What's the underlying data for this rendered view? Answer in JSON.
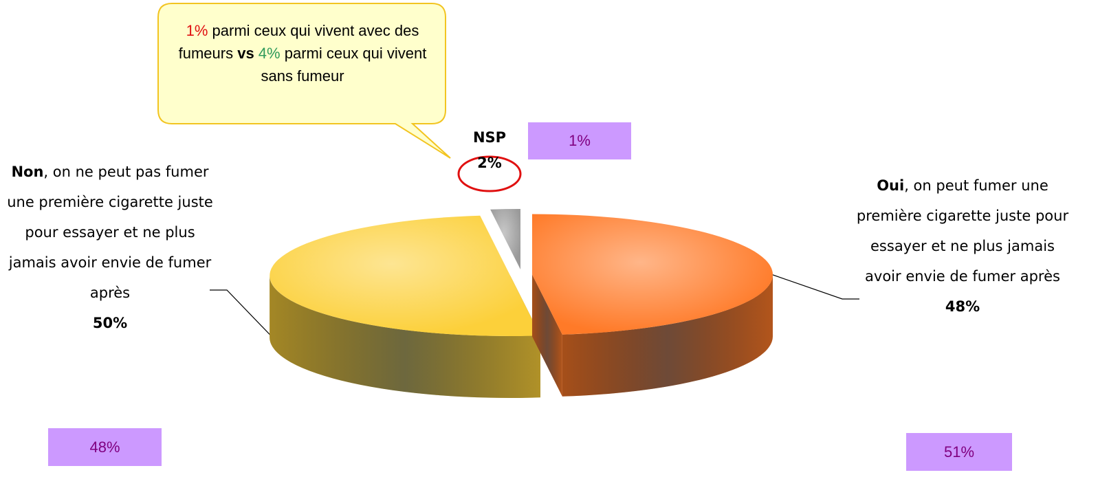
{
  "chart_data": {
    "type": "pie",
    "categories": [
      "Oui",
      "Non",
      "NSP"
    ],
    "descriptions": {
      "0": ", on peut fumer une première cigarette juste pour essayer et ne plus jamais avoir envie de fumer après",
      "1": ", on ne peut pas fumer une première cigarette juste pour essayer et ne plus jamais avoir envie de fumer après"
    },
    "values": [
      48,
      50,
      2
    ],
    "value_labels": [
      "48%",
      "50%",
      "2%"
    ],
    "colors": [
      "#ff7a28",
      "#fcd03a",
      "#9a9a9a"
    ],
    "comparison": {
      "values": [
        51,
        48,
        1
      ],
      "value_labels": [
        "51%",
        "48%",
        "1%"
      ],
      "color": "#cc99ff"
    },
    "annotation": {
      "parts": [
        "1%",
        " parmi ceux qui vivent avec des fumeurs ",
        "vs",
        " 4%",
        " parmi ceux qui vivent sans fumeur"
      ]
    }
  }
}
